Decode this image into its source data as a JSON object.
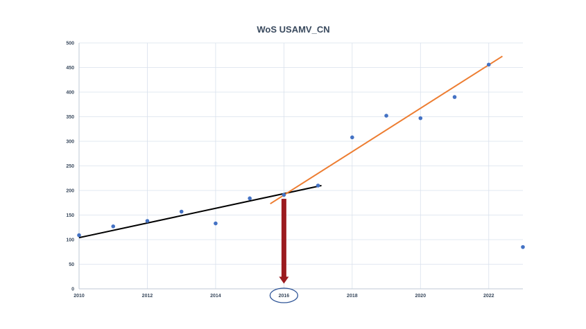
{
  "chart_data": {
    "type": "scatter",
    "title": "WoS USAMV_CN",
    "xlabel": "",
    "ylabel": "",
    "xlim": [
      2010,
      2023
    ],
    "ylim": [
      0,
      500
    ],
    "x_ticks": [
      2010,
      2012,
      2014,
      2016,
      2018,
      2020,
      2022
    ],
    "y_ticks": [
      0,
      50,
      100,
      150,
      200,
      250,
      300,
      350,
      400,
      450,
      500
    ],
    "grid": true,
    "legend": "none",
    "series": [
      {
        "x": [
          2010,
          2011,
          2012,
          2013,
          2014,
          2015,
          2016,
          2017,
          2018,
          2019,
          2020,
          2021,
          2022,
          2023
        ],
        "y": [
          109,
          127,
          138,
          157,
          133,
          184,
          191,
          210,
          308,
          352,
          347,
          390,
          456,
          85
        ],
        "color": "#4472c4"
      }
    ],
    "trendlines": [
      {
        "color": "#000000",
        "x": [
          2010,
          2017.1
        ],
        "y": [
          104,
          210
        ]
      },
      {
        "color": "#ed7d31",
        "x": [
          2015.6,
          2022.4
        ],
        "y": [
          173,
          473
        ]
      }
    ],
    "annotations": [
      {
        "type": "arrow",
        "color": "#9b1b1f",
        "x": 2016,
        "y_from": 183,
        "y_to": 12
      },
      {
        "type": "ellipse",
        "color": "#2f5597",
        "x": 2016,
        "target": "x-tick-label"
      }
    ],
    "colors": {
      "grid": "#d9e1ec",
      "axis": "#bfc9d6",
      "text": "#3a4a5e"
    }
  }
}
